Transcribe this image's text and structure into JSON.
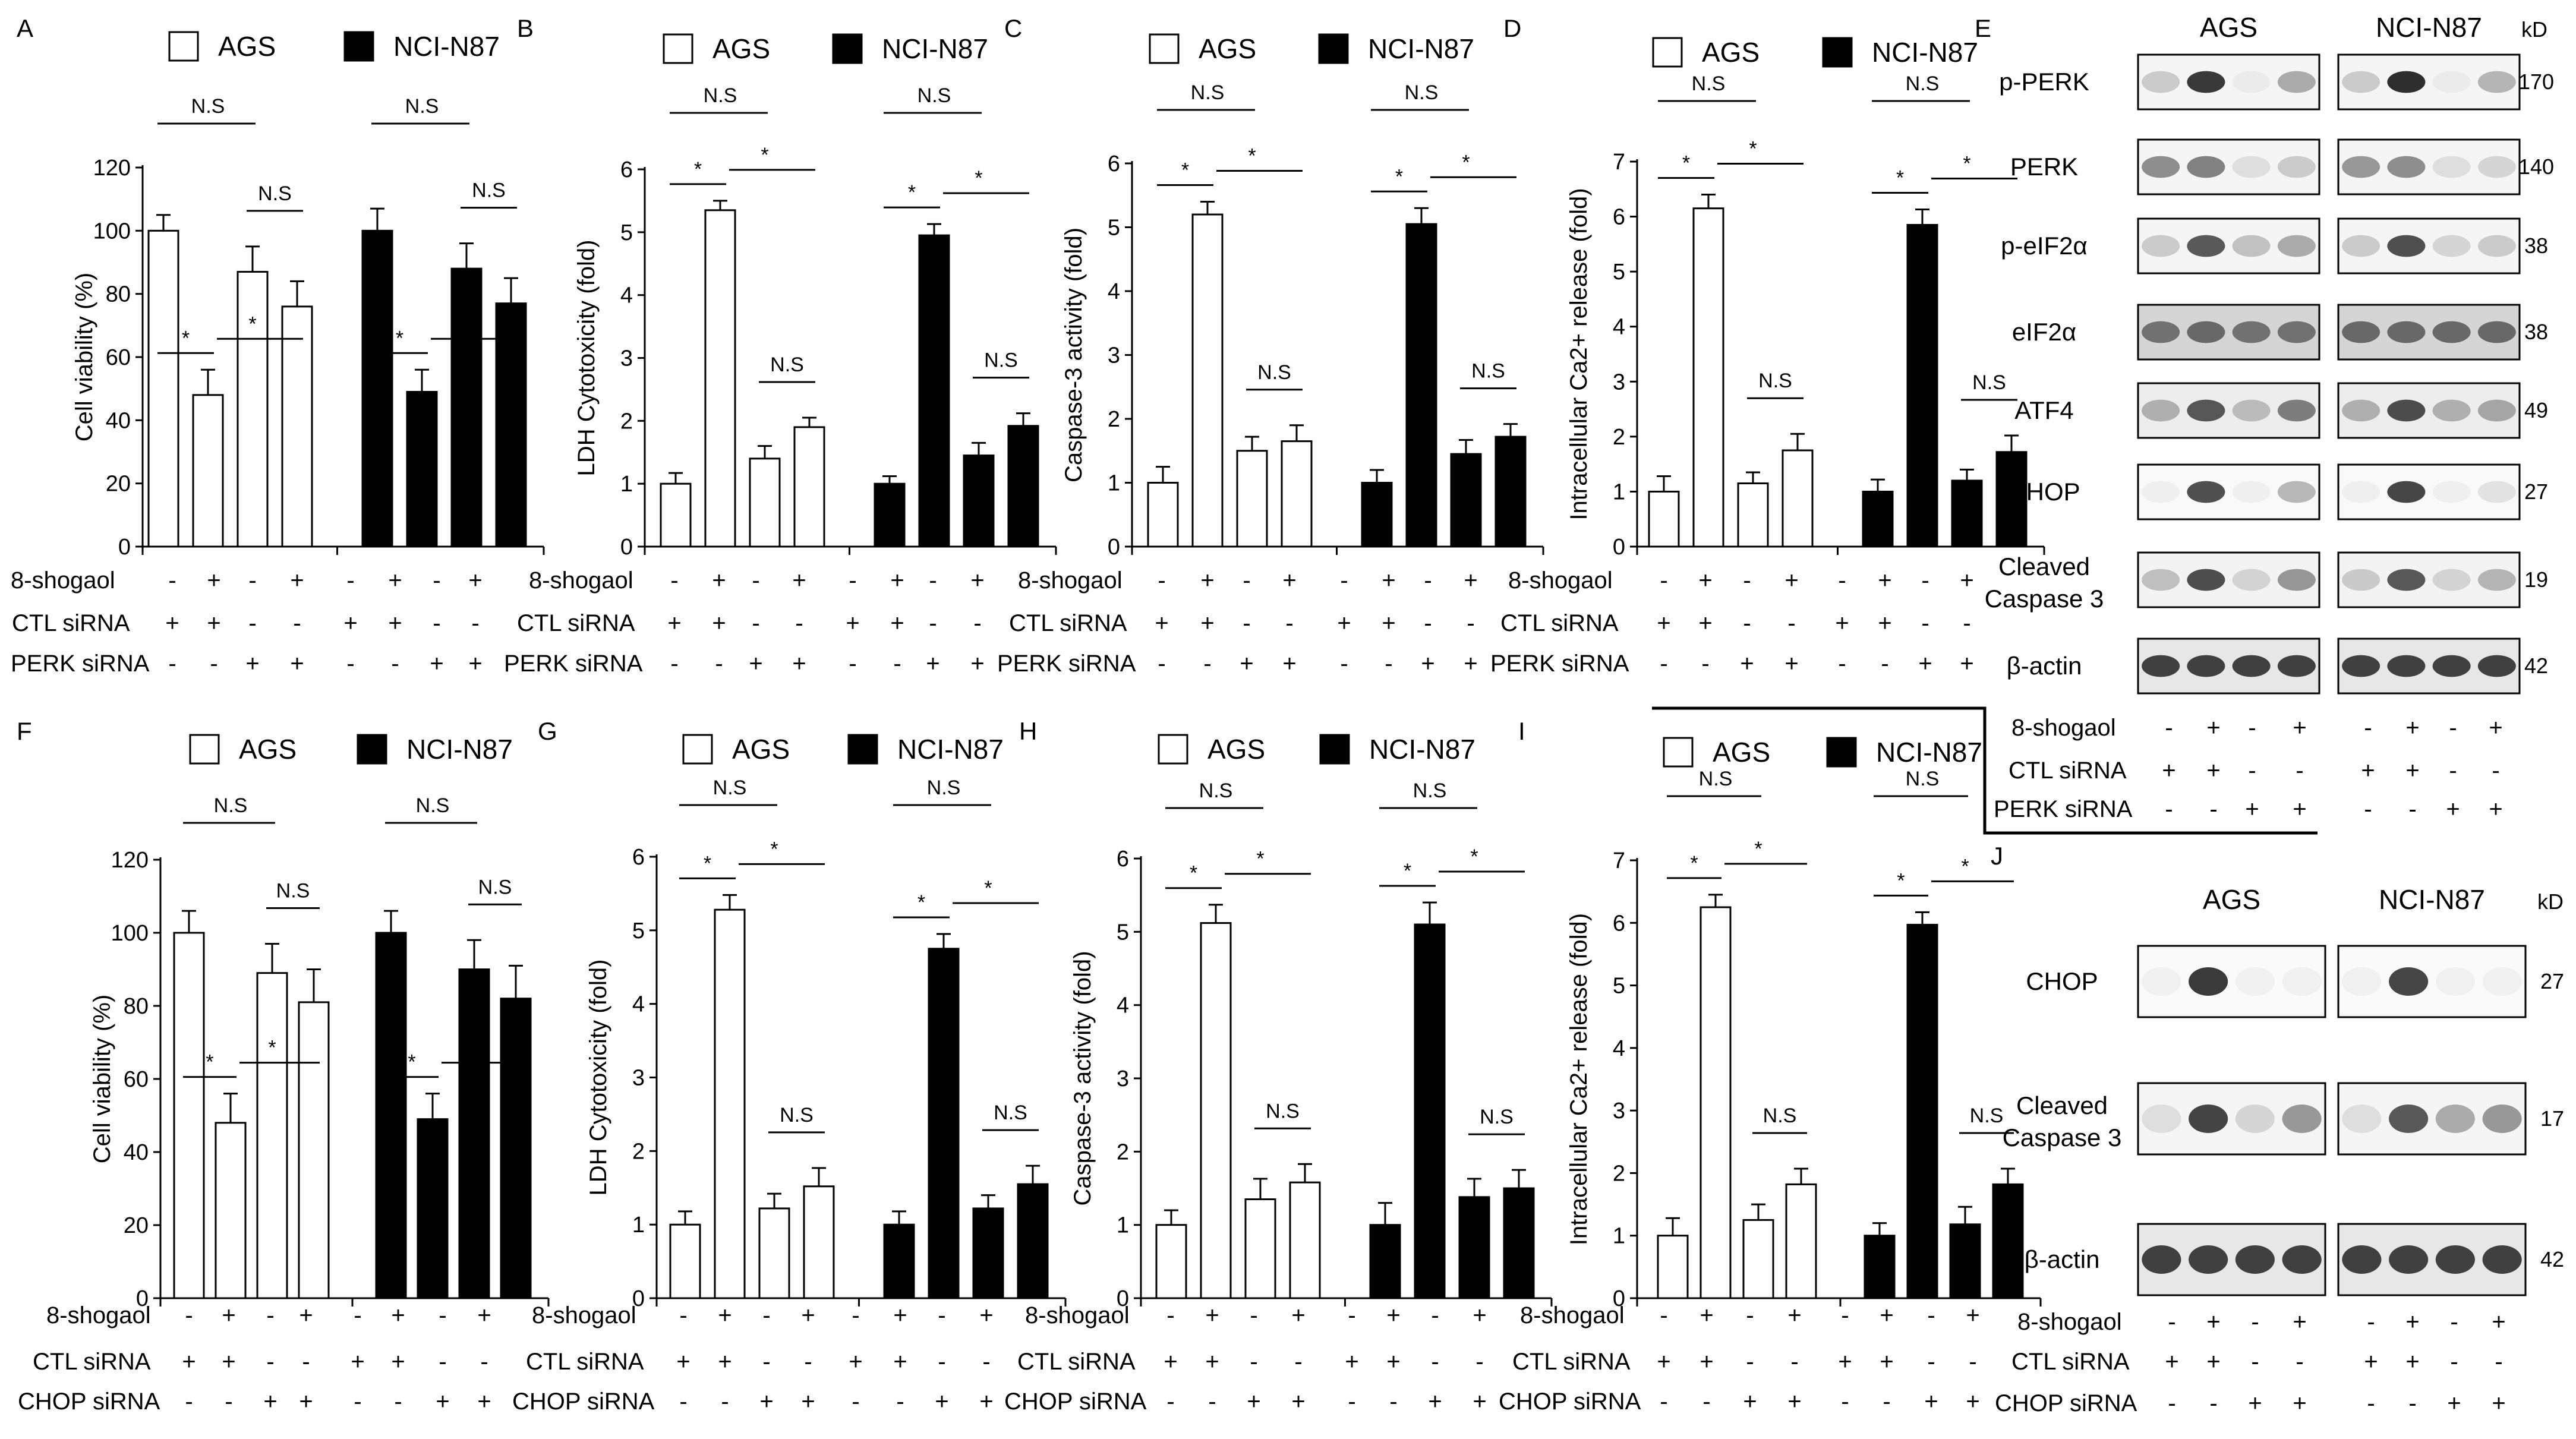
{
  "legend": {
    "ags": "AGS",
    "nci": "NCI-N87"
  },
  "treatment_labels": {
    "shogaol": "8-shogaol",
    "ctl": "CTL  siRNA",
    "perk": "PERK siRNA",
    "chop": "CHOP siRNA"
  },
  "sign_patterns": {
    "shogaol": [
      "-",
      "+",
      "-",
      "+",
      "-",
      "+",
      "-",
      "+"
    ],
    "ctl": [
      "+",
      "+",
      "-",
      "-",
      "+",
      "+",
      "-",
      "-"
    ],
    "sirna": [
      "-",
      "-",
      "+",
      "+",
      "-",
      "-",
      "+",
      "+"
    ]
  },
  "significance": {
    "ns": "N.S",
    "star": "*"
  },
  "chart_data": [
    {
      "id": "A",
      "type": "bar",
      "ylabel": "Cell viability (%)",
      "ylim": [
        0,
        120
      ],
      "yticks": [
        0,
        20,
        40,
        60,
        80,
        100,
        120
      ],
      "series": [
        {
          "name": "AGS",
          "values": [
            100,
            48,
            87,
            76
          ],
          "errors": [
            5,
            8,
            8,
            8
          ]
        },
        {
          "name": "NCI-N87",
          "values": [
            100,
            49,
            88,
            77
          ],
          "errors": [
            7,
            7,
            8,
            8
          ]
        }
      ]
    },
    {
      "id": "B",
      "type": "bar",
      "ylabel": "LDH Cytotoxicity (fold)",
      "ylim": [
        0,
        6
      ],
      "yticks": [
        0,
        1,
        2,
        3,
        4,
        5,
        6
      ],
      "series": [
        {
          "name": "AGS",
          "values": [
            1.0,
            5.35,
            1.4,
            1.9
          ],
          "errors": [
            0.17,
            0.15,
            0.2,
            0.15
          ]
        },
        {
          "name": "NCI-N87",
          "values": [
            1.0,
            4.95,
            1.45,
            1.92
          ],
          "errors": [
            0.12,
            0.18,
            0.2,
            0.2
          ]
        }
      ]
    },
    {
      "id": "C",
      "type": "bar",
      "ylabel": "Caspase-3  activity (fold)",
      "ylim": [
        0,
        6
      ],
      "yticks": [
        0,
        1,
        2,
        3,
        4,
        5,
        6
      ],
      "series": [
        {
          "name": "AGS",
          "values": [
            1.0,
            5.2,
            1.5,
            1.65
          ],
          "errors": [
            0.25,
            0.2,
            0.22,
            0.25
          ]
        },
        {
          "name": "NCI-N87",
          "values": [
            1.0,
            5.05,
            1.45,
            1.72
          ],
          "errors": [
            0.2,
            0.25,
            0.22,
            0.2
          ]
        }
      ]
    },
    {
      "id": "D",
      "type": "bar",
      "ylabel": "Intracellular  Ca2+ release (fold)",
      "ylim": [
        0,
        7
      ],
      "yticks": [
        0,
        1,
        2,
        3,
        4,
        5,
        6,
        7
      ],
      "series": [
        {
          "name": "AGS",
          "values": [
            1.0,
            6.15,
            1.15,
            1.75
          ],
          "errors": [
            0.28,
            0.25,
            0.2,
            0.3
          ]
        },
        {
          "name": "NCI-N87",
          "values": [
            1.0,
            5.85,
            1.2,
            1.72
          ],
          "errors": [
            0.22,
            0.28,
            0.2,
            0.3
          ]
        }
      ]
    },
    {
      "id": "F",
      "type": "bar",
      "ylabel": "Cell viability (%)",
      "ylim": [
        0,
        120
      ],
      "yticks": [
        0,
        20,
        40,
        60,
        80,
        100,
        120
      ],
      "series": [
        {
          "name": "AGS",
          "values": [
            100,
            48,
            89,
            81
          ],
          "errors": [
            6,
            8,
            8,
            9
          ]
        },
        {
          "name": "NCI-N87",
          "values": [
            100,
            49,
            90,
            82
          ],
          "errors": [
            6,
            7,
            8,
            9
          ]
        }
      ]
    },
    {
      "id": "G",
      "type": "bar",
      "ylabel": "LDH Cytotoxicity (fold)",
      "ylim": [
        0,
        6
      ],
      "yticks": [
        0,
        1,
        2,
        3,
        4,
        5,
        6
      ],
      "series": [
        {
          "name": "AGS",
          "values": [
            1.0,
            5.28,
            1.22,
            1.52
          ],
          "errors": [
            0.18,
            0.2,
            0.2,
            0.25
          ]
        },
        {
          "name": "NCI-N87",
          "values": [
            1.0,
            4.75,
            1.22,
            1.55
          ],
          "errors": [
            0.18,
            0.2,
            0.18,
            0.25
          ]
        }
      ]
    },
    {
      "id": "H",
      "type": "bar",
      "ylabel": "Caspase-3  activity (fold)",
      "ylim": [
        0,
        6
      ],
      "yticks": [
        0,
        1,
        2,
        3,
        4,
        5,
        6
      ],
      "series": [
        {
          "name": "AGS",
          "values": [
            1.0,
            5.12,
            1.35,
            1.58
          ],
          "errors": [
            0.2,
            0.25,
            0.28,
            0.25
          ]
        },
        {
          "name": "NCI-N87",
          "values": [
            1.0,
            5.1,
            1.38,
            1.5
          ],
          "errors": [
            0.3,
            0.3,
            0.25,
            0.25
          ]
        }
      ]
    },
    {
      "id": "I",
      "type": "bar",
      "ylabel": "Intracellular  Ca2+ release (fold)",
      "ylim": [
        0,
        7
      ],
      "yticks": [
        0,
        1,
        2,
        3,
        4,
        5,
        6,
        7
      ],
      "series": [
        {
          "name": "AGS",
          "values": [
            1.0,
            6.25,
            1.25,
            1.82
          ],
          "errors": [
            0.28,
            0.2,
            0.25,
            0.25
          ]
        },
        {
          "name": "NCI-N87",
          "values": [
            1.0,
            5.97,
            1.18,
            1.82
          ],
          "errors": [
            0.2,
            0.2,
            0.28,
            0.25
          ]
        }
      ]
    }
  ],
  "blots": {
    "E": {
      "letter": "E",
      "kd_label": "kD",
      "columns": [
        "AGS",
        "NCI-N87"
      ],
      "sirna_label": "PERK siRNA",
      "rows": [
        {
          "label": "p-PERK",
          "kd": "170",
          "intensity": [
            0.2,
            0.9,
            0.05,
            0.35,
            0.2,
            0.95,
            0.05,
            0.3
          ],
          "bg": 0.08
        },
        {
          "label": "PERK",
          "kd": "140",
          "intensity": [
            0.5,
            0.55,
            0.1,
            0.2,
            0.45,
            0.5,
            0.1,
            0.15
          ],
          "bg": 0.08
        },
        {
          "label": "p-eIF2α",
          "kd": "38",
          "intensity": [
            0.2,
            0.75,
            0.25,
            0.35,
            0.2,
            0.8,
            0.15,
            0.2
          ],
          "bg": 0.08
        },
        {
          "label": "eIF2α",
          "kd": "38",
          "intensity": [
            0.55,
            0.6,
            0.55,
            0.55,
            0.6,
            0.6,
            0.6,
            0.6
          ],
          "bg": 0.35
        },
        {
          "label": "ATF4",
          "kd": "49",
          "intensity": [
            0.3,
            0.75,
            0.25,
            0.55,
            0.3,
            0.8,
            0.3,
            0.35
          ],
          "bg": 0.15
        },
        {
          "label": "CHOP",
          "kd": "27",
          "intensity": [
            0.05,
            0.8,
            0.05,
            0.3,
            0.05,
            0.85,
            0.05,
            0.1
          ],
          "bg": 0.05
        },
        {
          "label": "Cleaved\nCaspase 3",
          "kd": "19",
          "intensity": [
            0.25,
            0.8,
            0.15,
            0.45,
            0.2,
            0.75,
            0.15,
            0.3
          ],
          "bg": 0.1
        },
        {
          "label": "β-actin",
          "kd": "42",
          "intensity": [
            0.85,
            0.85,
            0.85,
            0.85,
            0.85,
            0.85,
            0.85,
            0.85
          ],
          "bg": 0.2
        }
      ]
    },
    "J": {
      "letter": "J",
      "kd_label": "kD",
      "columns": [
        "AGS",
        "NCI-N87"
      ],
      "sirna_label": "CHOP siRNA",
      "rows": [
        {
          "label": "CHOP",
          "kd": "27",
          "intensity": [
            0.05,
            0.9,
            0.05,
            0.05,
            0.05,
            0.85,
            0.05,
            0.05
          ],
          "bg": 0.04
        },
        {
          "label": "Cleaved\nCaspase 3",
          "kd": "17",
          "intensity": [
            0.1,
            0.85,
            0.15,
            0.45,
            0.1,
            0.75,
            0.35,
            0.45
          ],
          "bg": 0.08
        },
        {
          "label": "β-actin",
          "kd": "42",
          "intensity": [
            0.85,
            0.85,
            0.85,
            0.85,
            0.85,
            0.85,
            0.85,
            0.85
          ],
          "bg": 0.2
        }
      ]
    }
  }
}
